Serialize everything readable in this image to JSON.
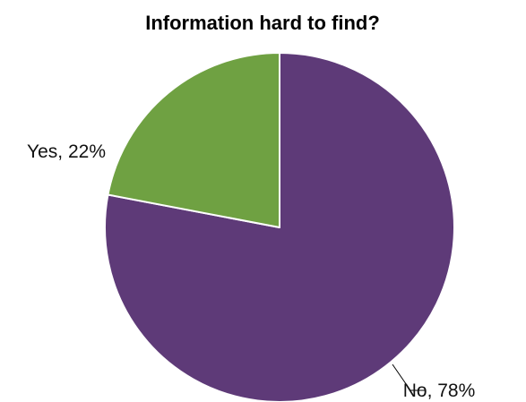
{
  "chart_data": {
    "type": "pie",
    "title": "Information hard to find?",
    "categories": [
      "No",
      "Yes"
    ],
    "values": [
      78,
      22
    ],
    "labels": [
      "No, 78%",
      "Yes, 22%"
    ],
    "colors": [
      "#5E3A78",
      "#6FA142"
    ],
    "start_angle_deg": 0,
    "direction": "clockwise",
    "legend": "none"
  }
}
